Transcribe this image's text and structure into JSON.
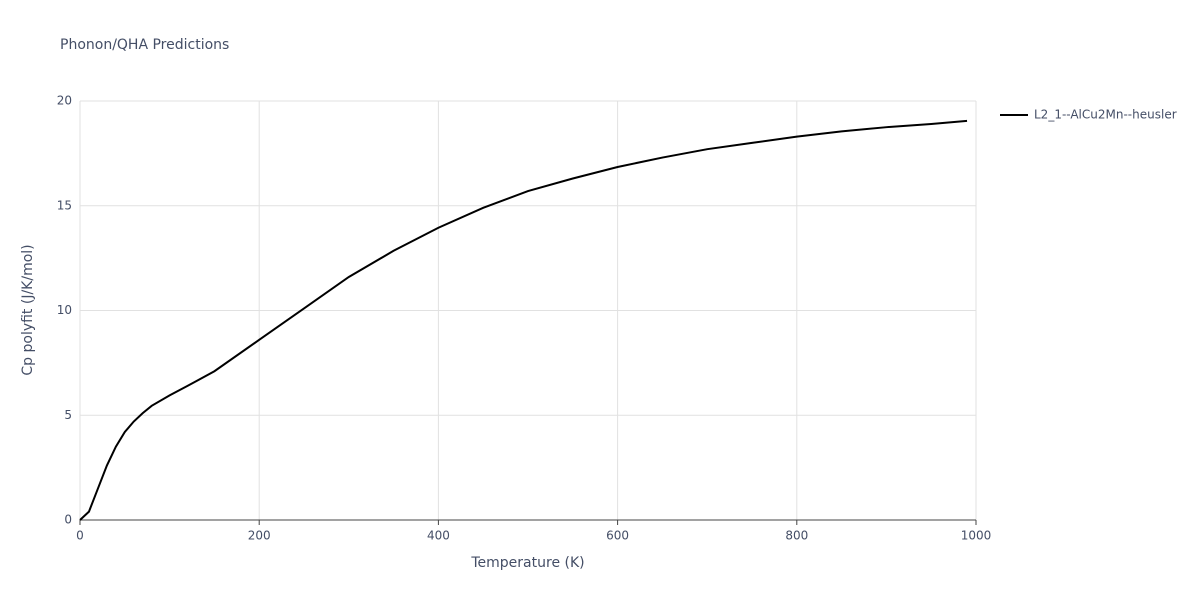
{
  "chart_data": {
    "type": "line",
    "title": "Phonon/QHA Predictions",
    "x_label": "Temperature (K)",
    "y_label": "Cp polyfit (J/K/mol)",
    "x": [
      0,
      10,
      20,
      30,
      40,
      50,
      60,
      70,
      80,
      100,
      120,
      150,
      200,
      250,
      300,
      350,
      400,
      450,
      500,
      550,
      600,
      650,
      700,
      750,
      800,
      850,
      900,
      950,
      990
    ],
    "series": [
      {
        "name": "L2_1--AlCu2Mn--heusler",
        "color": "#000000",
        "values": [
          0,
          0.4,
          1.5,
          2.6,
          3.5,
          4.2,
          4.7,
          5.1,
          5.45,
          5.95,
          6.4,
          7.1,
          8.6,
          10.1,
          11.6,
          12.85,
          13.95,
          14.9,
          15.7,
          16.3,
          16.85,
          17.3,
          17.7,
          18.0,
          18.3,
          18.55,
          18.75,
          18.9,
          19.05
        ]
      }
    ],
    "xlim": [
      0,
      1000
    ],
    "xticks": [
      0,
      200,
      400,
      600,
      800,
      1000
    ],
    "ylim": [
      0,
      20
    ],
    "yticks": [
      0,
      5,
      10,
      15,
      20
    ],
    "grid": true,
    "legend": "right"
  }
}
